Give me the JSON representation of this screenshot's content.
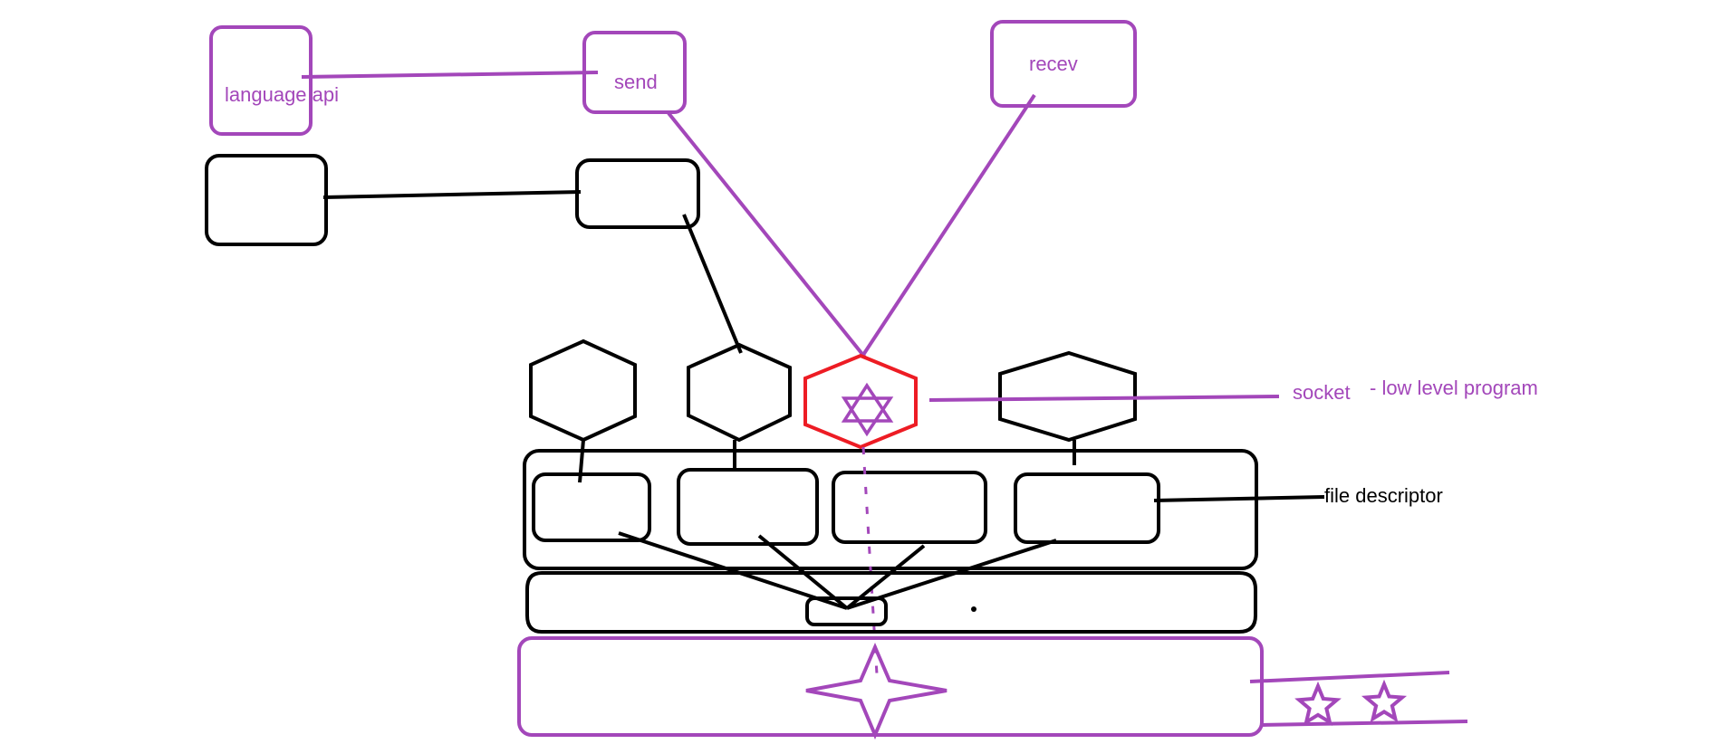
{
  "colors": {
    "purple": "#a347ba",
    "black": "#000000",
    "red": "#ed1c24",
    "background": "#ffffff"
  },
  "labels": {
    "language_api": "language api",
    "send": "send",
    "recev": "recev",
    "socket": "socket",
    "low_level_program": "- low level program",
    "file_descriptor": "file descriptor"
  },
  "icons": {
    "socket_hexagon_symbol": "six-point-star-icon",
    "kernel_symbol": "four-point-star-icon",
    "trailing_symbols": [
      "five-point-star-icon",
      "five-point-star-icon"
    ]
  }
}
